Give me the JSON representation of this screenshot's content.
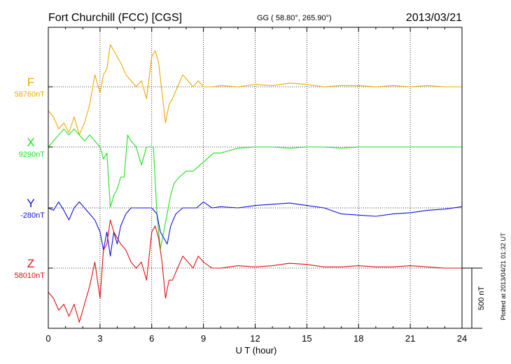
{
  "header": {
    "station": "Fort Churchill (FCC)  [CGS]",
    "coords": "GG ( 58.80°, 265.90°)",
    "date": "2013/03/21"
  },
  "plotted_note": "Plotted at 2013/04/21 01:32 UT",
  "chart_data": {
    "type": "line",
    "xlabel": "U T (hour)",
    "xlim": [
      0,
      24
    ],
    "x_ticks": [
      0,
      3,
      6,
      9,
      12,
      15,
      18,
      21,
      24
    ],
    "x_tick_labels": [
      "0",
      "3",
      "6",
      "9",
      "12",
      "15",
      "18",
      "21",
      "24"
    ],
    "grid": "dotted-vertical",
    "scale_bar": {
      "label": "500 nT",
      "value_nT": 500
    },
    "series": [
      {
        "name": "F",
        "baseline_label": "58760nT",
        "baseline_nT": 58760,
        "color": "#f0a800",
        "x": [
          0,
          0.3,
          0.6,
          0.9,
          1.2,
          1.5,
          1.8,
          2.1,
          2.4,
          2.7,
          3.0,
          3.2,
          3.4,
          3.6,
          3.8,
          4.0,
          4.2,
          4.5,
          4.8,
          5.1,
          5.4,
          5.7,
          6.0,
          6.2,
          6.4,
          6.6,
          6.8,
          7.0,
          7.2,
          7.5,
          7.8,
          8.1,
          8.4,
          8.7,
          9.0,
          9.5,
          10,
          11,
          12,
          13,
          14,
          15,
          16,
          17,
          18,
          19,
          20,
          21,
          22,
          23,
          24
        ],
        "y": [
          -200,
          -250,
          -350,
          -300,
          -380,
          -250,
          -400,
          -300,
          -150,
          100,
          -50,
          100,
          150,
          350,
          300,
          250,
          200,
          100,
          50,
          0,
          50,
          -100,
          250,
          300,
          200,
          -50,
          -300,
          -150,
          -100,
          0,
          100,
          50,
          0,
          50,
          0,
          0,
          10,
          0,
          20,
          10,
          30,
          20,
          0,
          10,
          10,
          0,
          10,
          0,
          10,
          0,
          0
        ]
      },
      {
        "name": "X",
        "baseline_label": "9290nT",
        "baseline_nT": 9290,
        "color": "#22dd22",
        "x": [
          0,
          0.3,
          0.6,
          0.9,
          1.2,
          1.5,
          1.8,
          2.1,
          2.4,
          2.7,
          3.0,
          3.2,
          3.4,
          3.6,
          3.8,
          4.0,
          4.2,
          4.4,
          4.6,
          4.8,
          5.1,
          5.4,
          5.7,
          5.9,
          6.1,
          6.3,
          6.5,
          6.7,
          6.9,
          7.1,
          7.3,
          7.6,
          8.0,
          8.4,
          8.8,
          9.2,
          9.6,
          10,
          11,
          12,
          13,
          14,
          15,
          16,
          17,
          18,
          19,
          20,
          21,
          22,
          23,
          24
        ],
        "y": [
          0,
          50,
          100,
          150,
          100,
          150,
          100,
          50,
          100,
          50,
          0,
          -100,
          -50,
          -500,
          -400,
          -350,
          -250,
          -250,
          100,
          50,
          0,
          -150,
          0,
          0,
          0,
          -550,
          -850,
          -700,
          -550,
          -400,
          -300,
          -250,
          -200,
          -200,
          -150,
          -100,
          -50,
          -50,
          -10,
          0,
          0,
          -10,
          0,
          0,
          -10,
          0,
          0,
          0,
          0,
          0,
          0,
          0
        ]
      },
      {
        "name": "Y",
        "baseline_label": "-280nT",
        "baseline_nT": -280,
        "color": "#1010dd",
        "x": [
          0,
          0.3,
          0.6,
          0.9,
          1.2,
          1.5,
          1.8,
          2.1,
          2.4,
          2.7,
          3.0,
          3.2,
          3.4,
          3.6,
          3.8,
          4.0,
          4.2,
          4.5,
          4.8,
          5.1,
          5.4,
          5.7,
          6.0,
          6.3,
          6.5,
          6.7,
          6.9,
          7.1,
          7.4,
          7.8,
          8.2,
          8.6,
          9.0,
          9.5,
          10,
          11,
          12,
          13,
          14,
          15,
          16,
          17,
          18,
          19,
          20,
          21,
          22,
          23,
          24
        ],
        "y": [
          0,
          -20,
          50,
          -20,
          -100,
          0,
          50,
          0,
          -50,
          -100,
          -200,
          -350,
          -200,
          -400,
          -200,
          -300,
          -150,
          -50,
          0,
          0,
          0,
          0,
          0,
          -50,
          -200,
          -250,
          -300,
          -150,
          -50,
          0,
          0,
          0,
          50,
          0,
          10,
          0,
          20,
          30,
          40,
          20,
          0,
          -50,
          -60,
          -70,
          -50,
          -40,
          -20,
          -10,
          10
        ]
      },
      {
        "name": "Z",
        "baseline_label": "58010nT",
        "baseline_nT": 58010,
        "color": "#e01010",
        "x": [
          0,
          0.3,
          0.6,
          0.9,
          1.2,
          1.5,
          1.8,
          2.1,
          2.4,
          2.7,
          3.0,
          3.2,
          3.4,
          3.6,
          3.8,
          4.0,
          4.2,
          4.5,
          4.8,
          5.1,
          5.4,
          5.7,
          6.0,
          6.2,
          6.4,
          6.6,
          6.8,
          7.0,
          7.2,
          7.5,
          7.8,
          8.1,
          8.4,
          8.7,
          9.0,
          9.5,
          10,
          11,
          12,
          13,
          14,
          15,
          16,
          17,
          18,
          19,
          20,
          21,
          22,
          23,
          24
        ],
        "y": [
          -200,
          -250,
          -350,
          -300,
          -400,
          -300,
          -450,
          -300,
          -150,
          50,
          -250,
          150,
          200,
          400,
          300,
          250,
          200,
          150,
          50,
          0,
          50,
          -100,
          300,
          350,
          250,
          50,
          -250,
          -100,
          -100,
          0,
          100,
          50,
          0,
          100,
          50,
          0,
          0,
          20,
          10,
          20,
          40,
          30,
          10,
          10,
          20,
          10,
          10,
          20,
          10,
          0,
          0
        ]
      }
    ]
  }
}
